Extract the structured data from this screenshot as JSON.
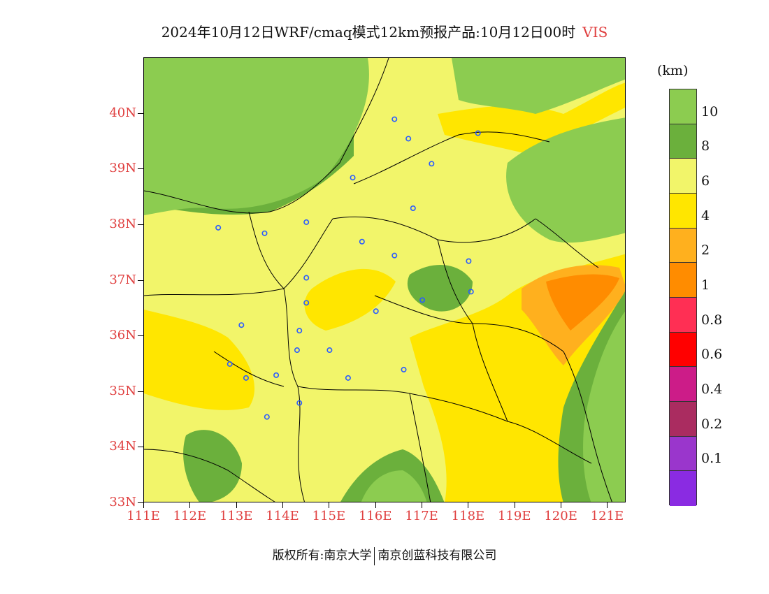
{
  "title": {
    "main": "2024年10月12日WRF/cmaq模式12km预报产品:10月12日00时",
    "variable": "VIS"
  },
  "axes": {
    "y_labels": [
      "40N",
      "39N",
      "38N",
      "37N",
      "36N",
      "35N",
      "34N",
      "33N"
    ],
    "x_labels": [
      "111E",
      "112E",
      "113E",
      "114E",
      "115E",
      "116E",
      "117E",
      "118E",
      "119E",
      "120E",
      "121E"
    ]
  },
  "colorbar": {
    "unit": "(km)",
    "labels": [
      "10",
      "8",
      "6",
      "4",
      "2",
      "1",
      "0.8",
      "0.6",
      "0.4",
      "0.2",
      "0.1"
    ],
    "colors": [
      "#8ccc50",
      "#6bb03c",
      "#f2f56a",
      "#ffe600",
      "#ffb01e",
      "#ff8c00",
      "#ff2f54",
      "#ff0000",
      "#cc1c88",
      "#aa2c60",
      "#9a36cc",
      "#8a2be2"
    ]
  },
  "footer": {
    "left": "版权所有:南京大学",
    "right": "南京创蓝科技有限公司"
  },
  "map": {
    "lon_range": [
      111,
      121.4
    ],
    "lat_range": [
      33,
      41
    ],
    "fill_colors": {
      "vis_gt10": "#8ccc50",
      "vis_8_10": "#6bb03c",
      "vis_6_8": "#f2f56a",
      "vis_4_6": "#ffe600",
      "vis_2_4": "#ffb01e",
      "vis_1_2": "#ff8c00"
    },
    "stations": [
      {
        "lon": 116.4,
        "lat": 39.9
      },
      {
        "lon": 116.7,
        "lat": 39.55
      },
      {
        "lon": 118.2,
        "lat": 39.65
      },
      {
        "lon": 117.2,
        "lat": 39.1
      },
      {
        "lon": 115.5,
        "lat": 38.85
      },
      {
        "lon": 116.8,
        "lat": 38.3
      },
      {
        "lon": 112.6,
        "lat": 37.95
      },
      {
        "lon": 113.6,
        "lat": 37.85
      },
      {
        "lon": 114.5,
        "lat": 38.05
      },
      {
        "lon": 115.7,
        "lat": 37.7
      },
      {
        "lon": 116.4,
        "lat": 37.45
      },
      {
        "lon": 118.0,
        "lat": 37.35
      },
      {
        "lon": 114.5,
        "lat": 37.05
      },
      {
        "lon": 114.5,
        "lat": 36.6
      },
      {
        "lon": 116.0,
        "lat": 36.45
      },
      {
        "lon": 117.0,
        "lat": 36.65
      },
      {
        "lon": 118.05,
        "lat": 36.8
      },
      {
        "lon": 113.1,
        "lat": 36.2
      },
      {
        "lon": 114.35,
        "lat": 36.1
      },
      {
        "lon": 114.3,
        "lat": 35.75
      },
      {
        "lon": 115.0,
        "lat": 35.75
      },
      {
        "lon": 112.85,
        "lat": 35.5
      },
      {
        "lon": 113.2,
        "lat": 35.25
      },
      {
        "lon": 113.85,
        "lat": 35.3
      },
      {
        "lon": 115.4,
        "lat": 35.25
      },
      {
        "lon": 116.6,
        "lat": 35.4
      },
      {
        "lon": 114.35,
        "lat": 34.8
      },
      {
        "lon": 113.65,
        "lat": 34.55
      }
    ]
  }
}
